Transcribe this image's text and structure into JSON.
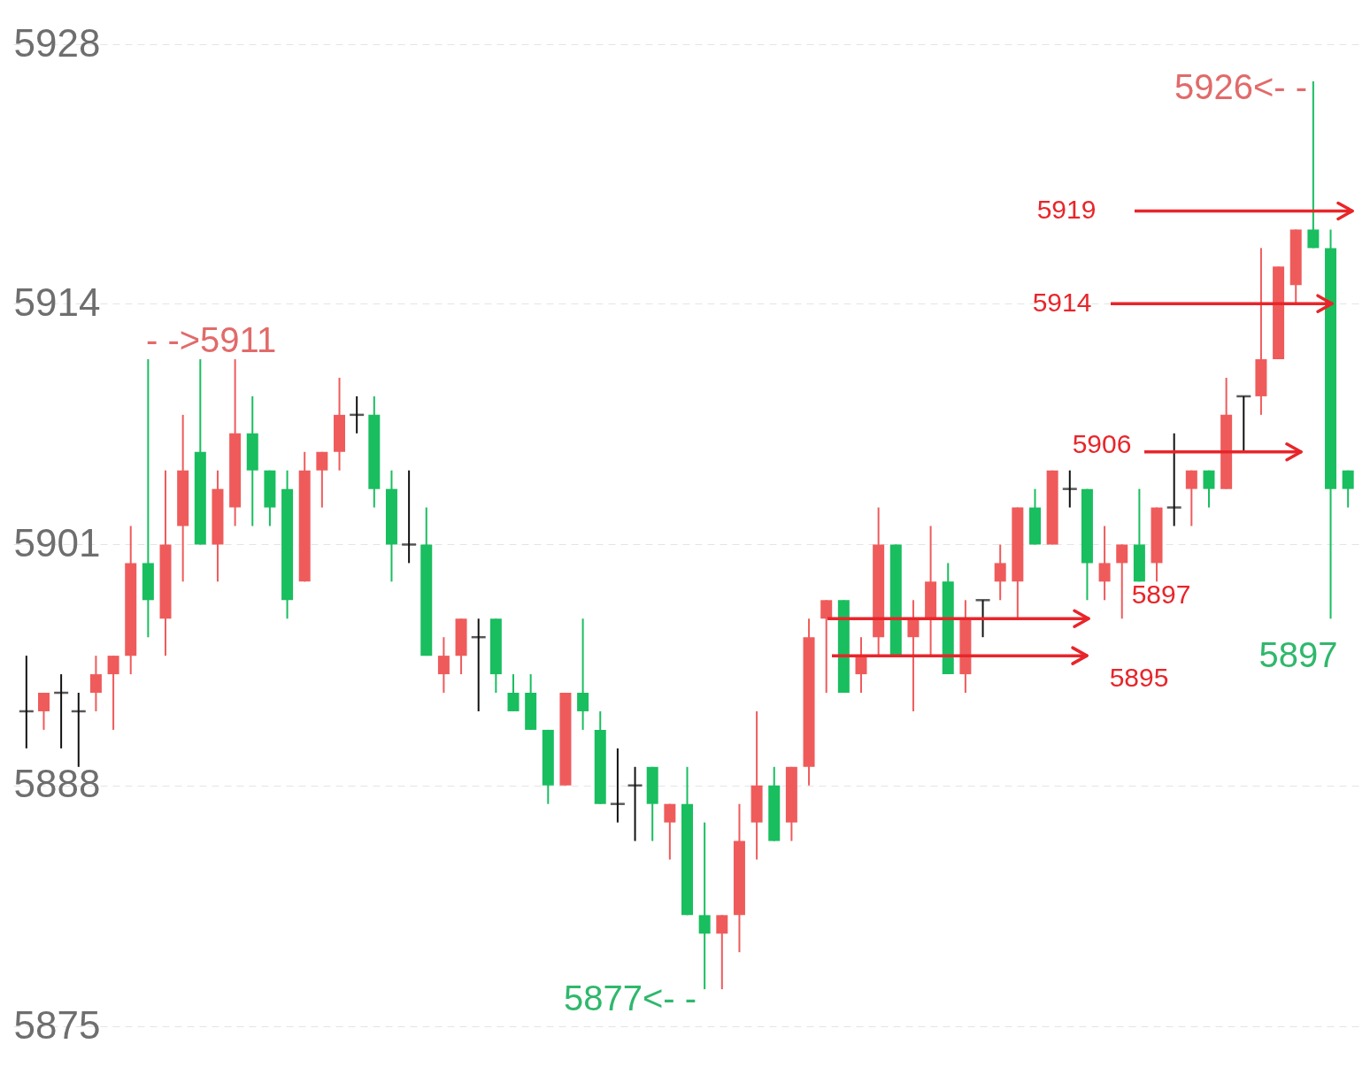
{
  "chart_data": {
    "type": "candlestick",
    "categories": [
      null,
      null,
      null,
      null,
      null,
      null,
      null,
      null,
      null,
      null,
      null,
      null,
      null,
      null,
      null,
      null,
      null,
      null,
      null,
      null,
      null,
      null,
      null,
      null,
      null,
      null,
      null,
      null,
      null,
      null,
      null,
      null,
      null,
      null,
      null,
      null,
      null,
      null,
      null,
      null,
      null,
      null,
      null,
      null,
      null,
      null,
      null,
      null,
      null,
      null,
      null,
      null,
      null,
      null,
      null,
      null,
      null,
      null,
      null,
      null,
      null,
      null,
      null,
      null,
      null,
      null,
      null,
      null,
      null,
      null,
      null,
      null,
      null,
      null,
      null,
      null,
      null
    ],
    "ohlc": [
      [
        5892,
        5895,
        5890,
        5892
      ],
      [
        5892,
        5893,
        5891,
        5893
      ],
      [
        5893,
        5894,
        5890,
        5893
      ],
      [
        5892,
        5893,
        5889,
        5892
      ],
      [
        5893,
        5895,
        5892,
        5894
      ],
      [
        5894,
        5895,
        5891,
        5895
      ],
      [
        5895,
        5902,
        5894,
        5900
      ],
      [
        5900,
        5911,
        5896,
        5898
      ],
      [
        5897,
        5905,
        5895,
        5901
      ],
      [
        5902,
        5908,
        5899,
        5905
      ],
      [
        5906,
        5911,
        5901,
        5901
      ],
      [
        5901,
        5905,
        5899,
        5904
      ],
      [
        5903,
        5911,
        5902,
        5907
      ],
      [
        5907,
        5909,
        5902,
        5905
      ],
      [
        5905,
        5905,
        5902,
        5903
      ],
      [
        5904,
        5905,
        5897,
        5898
      ],
      [
        5899,
        5906,
        5899,
        5905
      ],
      [
        5905,
        5906,
        5903,
        5906
      ],
      [
        5906,
        5910,
        5905,
        5908
      ],
      [
        5908,
        5909,
        5907,
        5908
      ],
      [
        5908,
        5909,
        5903,
        5904
      ],
      [
        5904,
        5905,
        5899,
        5901
      ],
      [
        5901,
        5905,
        5900,
        5901
      ],
      [
        5901,
        5903,
        5895,
        5895
      ],
      [
        5894,
        5896,
        5893,
        5895
      ],
      [
        5895,
        5897,
        5894,
        5897
      ],
      [
        5896,
        5897,
        5892,
        5896
      ],
      [
        5897,
        5897,
        5893,
        5894
      ],
      [
        5893,
        5894,
        5892,
        5892
      ],
      [
        5893,
        5894,
        5891,
        5891
      ],
      [
        5891,
        5891,
        5887,
        5888
      ],
      [
        5888,
        5893,
        5888,
        5893
      ],
      [
        5893,
        5897,
        5891,
        5892
      ],
      [
        5891,
        5892,
        5887,
        5887
      ],
      [
        5887,
        5890,
        5886,
        5887
      ],
      [
        5888,
        5889,
        5885,
        5888
      ],
      [
        5889,
        5889,
        5885,
        5887
      ],
      [
        5886,
        5887,
        5884,
        5887
      ],
      [
        5887,
        5889,
        5881,
        5881
      ],
      [
        5881,
        5886,
        5877,
        5880
      ],
      [
        5880,
        5881,
        5877,
        5881
      ],
      [
        5881,
        5887,
        5879,
        5885
      ],
      [
        5886,
        5892,
        5884,
        5888
      ],
      [
        5888,
        5889,
        5885,
        5885
      ],
      [
        5886,
        5889,
        5885,
        5889
      ],
      [
        5889,
        5897,
        5888,
        5896
      ],
      [
        5897,
        5898,
        5893,
        5898
      ],
      [
        5898,
        5898,
        5893,
        5893
      ],
      [
        5894,
        5896,
        5893,
        5895
      ],
      [
        5896,
        5903,
        5895,
        5901
      ],
      [
        5901,
        5901,
        5895,
        5895
      ],
      [
        5896,
        5898,
        5892,
        5897
      ],
      [
        5897,
        5902,
        5895,
        5899
      ],
      [
        5899,
        5900,
        5894,
        5894
      ],
      [
        5894,
        5898,
        5893,
        5897
      ],
      [
        5898,
        5898,
        5896,
        5898
      ],
      [
        5899,
        5901,
        5898,
        5900
      ],
      [
        5899,
        5903,
        5897,
        5903
      ],
      [
        5903,
        5904,
        5901,
        5901
      ],
      [
        5901,
        5905,
        5901,
        5905
      ],
      [
        5904,
        5905,
        5903,
        5904
      ],
      [
        5904,
        5904,
        5898,
        5900
      ],
      [
        5899,
        5902,
        5898,
        5900
      ],
      [
        5900,
        5901,
        5897,
        5901
      ],
      [
        5901,
        5904,
        5899,
        5899
      ],
      [
        5900,
        5903,
        5899,
        5903
      ],
      [
        5903,
        5907,
        5902,
        5903
      ],
      [
        5904,
        5905,
        5902,
        5905
      ],
      [
        5905,
        5905,
        5903,
        5904
      ],
      [
        5904,
        5910,
        5904,
        5908
      ],
      [
        5909,
        5909,
        5906,
        5909
      ],
      [
        5909,
        5917,
        5908,
        5911
      ],
      [
        5911,
        5916,
        5911,
        5916
      ],
      [
        5915,
        5918,
        5914,
        5918
      ],
      [
        5918,
        5926,
        5917,
        5917
      ],
      [
        5917,
        5918,
        5897,
        5904
      ],
      [
        5905,
        5905,
        5903,
        5904
      ]
    ],
    "colors": [
      "#111111",
      "#ef5b5b",
      "#111111",
      "#111111",
      "#ef5b5b",
      "#ef5b5b",
      "#ef5b5b",
      "#19be5f",
      "#ef5b5b",
      "#ef5b5b",
      "#19be5f",
      "#ef5b5b",
      "#ef5b5b",
      "#19be5f",
      "#19be5f",
      "#19be5f",
      "#ef5b5b",
      "#ef5b5b",
      "#ef5b5b",
      "#111111",
      "#19be5f",
      "#19be5f",
      "#111111",
      "#19be5f",
      "#ef5b5b",
      "#ef5b5b",
      "#111111",
      "#19be5f",
      "#19be5f",
      "#19be5f",
      "#19be5f",
      "#ef5b5b",
      "#19be5f",
      "#19be5f",
      "#111111",
      "#111111",
      "#19be5f",
      "#ef5b5b",
      "#19be5f",
      "#19be5f",
      "#ef5b5b",
      "#ef5b5b",
      "#ef5b5b",
      "#19be5f",
      "#ef5b5b",
      "#ef5b5b",
      "#ef5b5b",
      "#19be5f",
      "#ef5b5b",
      "#ef5b5b",
      "#19be5f",
      "#ef5b5b",
      "#ef5b5b",
      "#19be5f",
      "#ef5b5b",
      "#111111",
      "#ef5b5b",
      "#ef5b5b",
      "#19be5f",
      "#ef5b5b",
      "#111111",
      "#19be5f",
      "#ef5b5b",
      "#ef5b5b",
      "#19be5f",
      "#ef5b5b",
      "#111111",
      "#ef5b5b",
      "#19be5f",
      "#ef5b5b",
      "#111111",
      "#ef5b5b",
      "#ef5b5b",
      "#ef5b5b",
      "#19be5f",
      "#19be5f",
      "#19be5f"
    ],
    "ylim": [
      5875,
      5928
    ],
    "yticks": [
      5875,
      5888,
      5901,
      5914,
      5928
    ],
    "grid": "y",
    "ref_lines": [
      {
        "axis": "y",
        "value": 5919,
        "label": "5919",
        "color": "#e8252a"
      },
      {
        "axis": "y",
        "value": 5914,
        "label": "5914",
        "color": "#e8252a"
      },
      {
        "axis": "y",
        "value": 5906,
        "label": "5906",
        "color": "#e8252a"
      },
      {
        "axis": "y",
        "value": 5897,
        "label": "5897",
        "color": "#e8252a"
      },
      {
        "axis": "y",
        "value": 5895,
        "label": "5895",
        "color": "#e8252a"
      }
    ],
    "annotations": [
      "5926<- -",
      "- ->5911",
      "5877<- -",
      "5897"
    ]
  }
}
